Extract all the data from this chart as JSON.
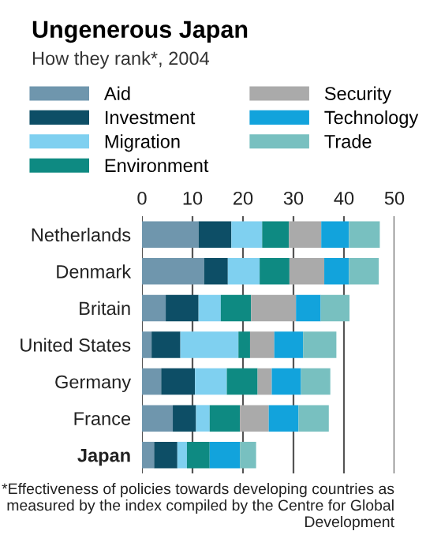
{
  "chart_data": {
    "type": "bar",
    "orientation": "horizontal",
    "stacked": true,
    "title": "Ungenerous Japan",
    "subtitle": "How they rank*, 2004",
    "categories": [
      "Netherlands",
      "Denmark",
      "Britain",
      "United States",
      "Germany",
      "France",
      "Japan"
    ],
    "series": [
      {
        "name": "Aid",
        "color": "#6f96ad",
        "values": [
          11.2,
          12.3,
          4.7,
          1.9,
          3.8,
          6.1,
          2.4
        ]
      },
      {
        "name": "Investment",
        "color": "#0d4e66",
        "values": [
          6.5,
          4.7,
          6.5,
          5.7,
          6.7,
          4.6,
          4.6
        ]
      },
      {
        "name": "Migration",
        "color": "#7fd0f0",
        "values": [
          6.1,
          6.3,
          4.4,
          11.5,
          6.3,
          2.7,
          1.9
        ]
      },
      {
        "name": "Environment",
        "color": "#0e8a82",
        "values": [
          5.3,
          5.9,
          6.0,
          2.3,
          6.1,
          6.0,
          4.5
        ]
      },
      {
        "name": "Security",
        "color": "#aaaaaa",
        "values": [
          6.4,
          6.9,
          8.9,
          4.8,
          2.8,
          5.7,
          0
        ]
      },
      {
        "name": "Technology",
        "color": "#12a3dc",
        "values": [
          5.5,
          4.9,
          4.9,
          5.7,
          5.8,
          5.9,
          6.0
        ]
      },
      {
        "name": "Trade",
        "color": "#78c0c0",
        "values": [
          6.1,
          5.9,
          5.7,
          6.6,
          5.8,
          6.0,
          3.2
        ]
      }
    ],
    "xlim": [
      0,
      50
    ],
    "xticks": [
      0,
      10,
      20,
      30,
      40,
      50
    ],
    "grid": "x",
    "legend": "top",
    "annotations": [
      "*Effectiveness of policies towards developing countries as measured by the index compiled by the Centre for Global Development"
    ]
  }
}
